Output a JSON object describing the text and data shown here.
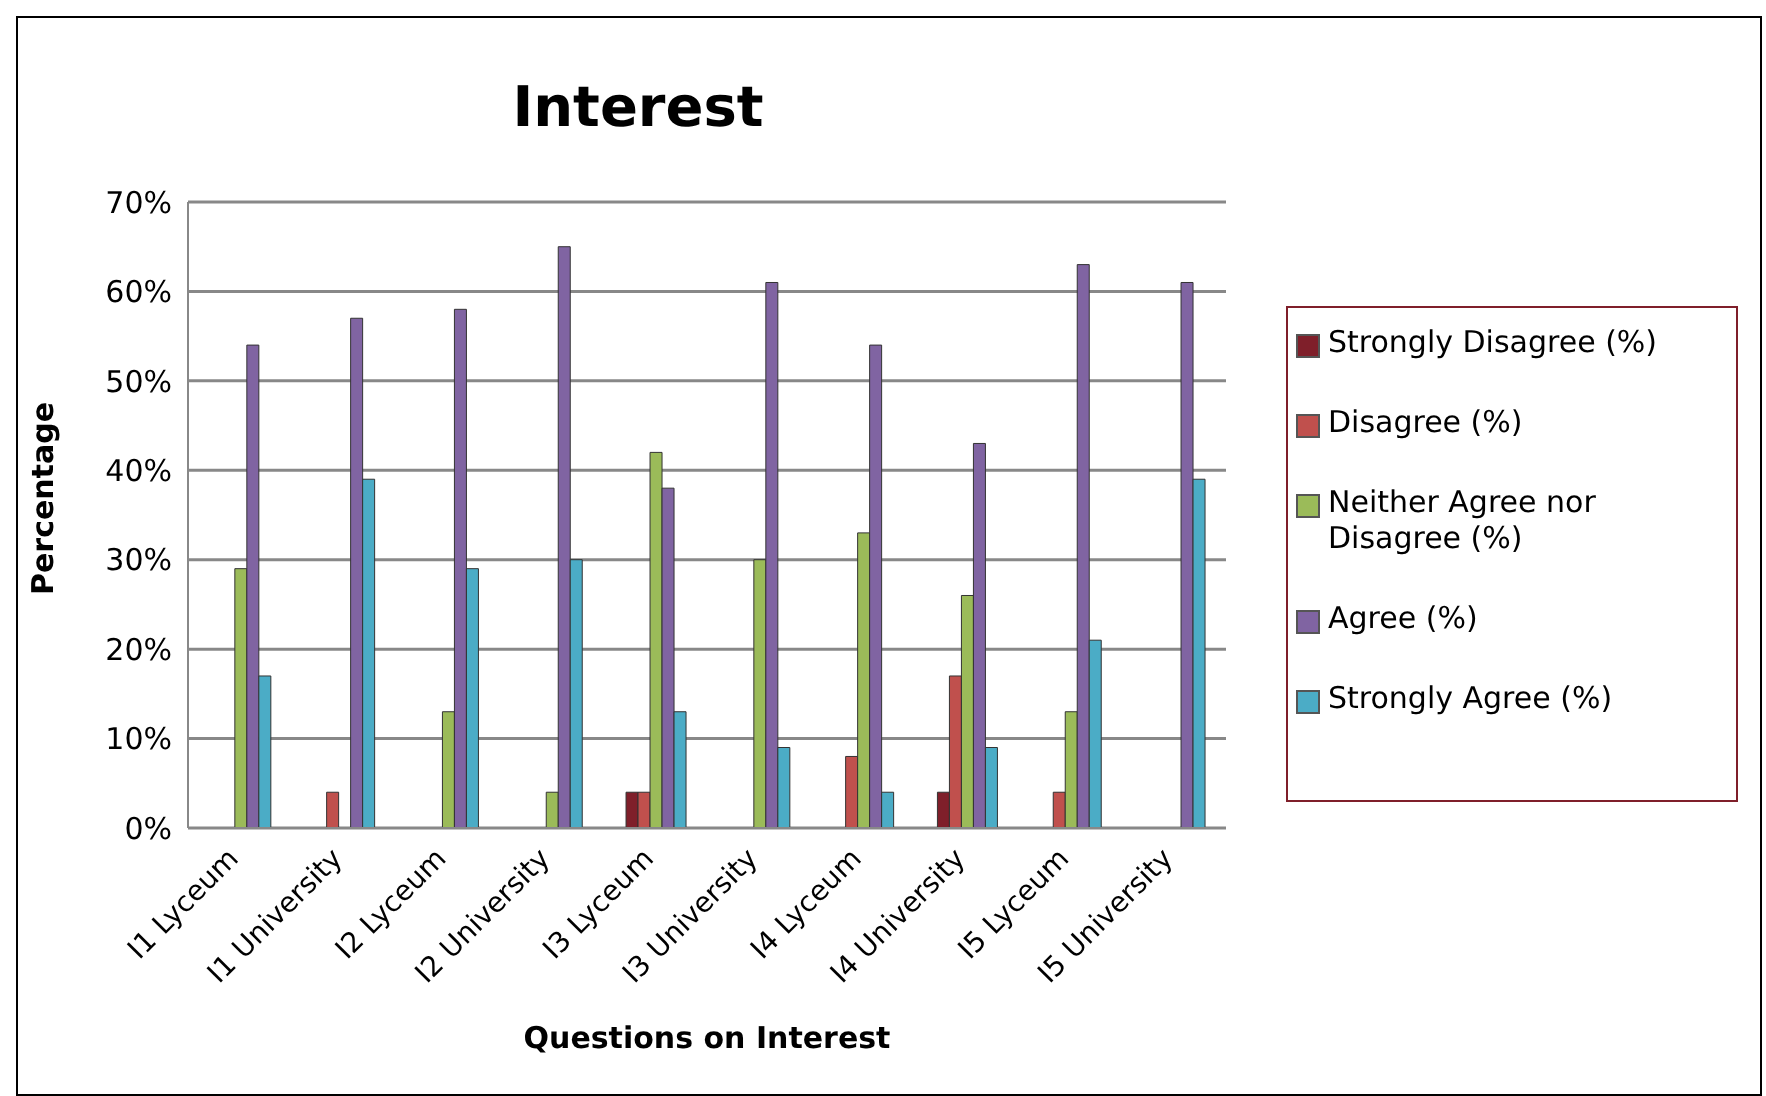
{
  "chart_data": {
    "type": "bar",
    "title": "Interest",
    "xlabel": "Questions on Interest",
    "ylabel": "Percentage",
    "categories": [
      "I1 Lyceum",
      "I1 University",
      "I2 Lyceum",
      "I2 University",
      "I3 Lyceum",
      "I3 University",
      "I4 Lyceum",
      "I4 University",
      "I5 Lyceum",
      "I5 University"
    ],
    "series": [
      {
        "name": "Strongly Disagree (%)",
        "color": "#7f1f2a",
        "values": [
          0,
          0,
          0,
          0,
          4,
          0,
          0,
          4,
          0,
          0
        ]
      },
      {
        "name": "Disagree (%)",
        "color": "#c0504d",
        "values": [
          0,
          4,
          0,
          0,
          4,
          0,
          8,
          17,
          4,
          0
        ]
      },
      {
        "name": "Neither Agree nor Disagree (%)",
        "color": "#9bbb59",
        "values": [
          29,
          0,
          13,
          4,
          42,
          30,
          33,
          26,
          13,
          0
        ]
      },
      {
        "name": "Agree (%)",
        "color": "#8064a2",
        "values": [
          54,
          57,
          58,
          65,
          38,
          61,
          54,
          43,
          63,
          61
        ]
      },
      {
        "name": "Strongly Agree (%)",
        "color": "#4bacc6",
        "values": [
          17,
          39,
          29,
          30,
          13,
          9,
          4,
          9,
          21,
          39
        ]
      }
    ],
    "ylim": [
      0,
      70
    ],
    "yticks": [
      {
        "value": 0,
        "label": "0%"
      },
      {
        "value": 10,
        "label": "10%"
      },
      {
        "value": 20,
        "label": "20%"
      },
      {
        "value": 30,
        "label": "30%"
      },
      {
        "value": 40,
        "label": "40%"
      },
      {
        "value": 50,
        "label": "50%"
      },
      {
        "value": 60,
        "label": "60%"
      },
      {
        "value": 70,
        "label": "70%"
      }
    ],
    "grid": "y",
    "legend": "right"
  }
}
